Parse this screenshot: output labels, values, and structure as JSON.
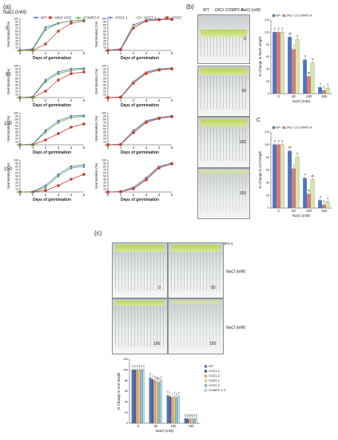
{
  "panel_a": {
    "label": "(a)",
    "nacl_header": "NaCl (mM)",
    "legend": [
      {
        "name": "WT",
        "color": "#3d6bc4",
        "marker": "diamond"
      },
      {
        "name": "DKO VOZ",
        "color": "#c0392b",
        "marker": "square"
      },
      {
        "name": "COMP2-4",
        "color": "#4f9a3a",
        "marker": "triangle"
      },
      {
        "name": "VOZ1-1",
        "color": "#3d6bc4",
        "marker": "diamond"
      },
      {
        "name": "VOZ2-1",
        "color": "#8a8a8a",
        "marker": "circle"
      },
      {
        "name": "VOZ2-",
        "color": "#c0392b",
        "marker": "square"
      }
    ],
    "row_labels": [
      "0",
      "50",
      "100",
      "150"
    ],
    "ylabel": "Germination (%)",
    "xlabel": "Days of germination"
  },
  "chart_data": [
    {
      "id": "a-0-left",
      "type": "line",
      "x": [
        0,
        1,
        2,
        3,
        4,
        5
      ],
      "ylim": [
        0,
        100
      ],
      "yticks": [
        0,
        10,
        20,
        30,
        40,
        50,
        60,
        70,
        80,
        90,
        100
      ],
      "series": [
        {
          "name": "WT",
          "values": [
            0,
            5,
            72,
            85,
            92,
            95
          ]
        },
        {
          "name": "DKO VOZ",
          "values": [
            0,
            0,
            20,
            60,
            85,
            92
          ]
        },
        {
          "name": "COMP2-4",
          "values": [
            0,
            3,
            65,
            85,
            92,
            95
          ]
        }
      ]
    },
    {
      "id": "a-0-right",
      "type": "line",
      "x": [
        0,
        1,
        2,
        3,
        4,
        5
      ],
      "ylim": [
        0,
        100
      ],
      "yticks": [
        0,
        10,
        20,
        30,
        40,
        50,
        60,
        70,
        80,
        90,
        100
      ],
      "series": [
        {
          "name": "VOZ1-1",
          "values": [
            0,
            5,
            80,
            95,
            98,
            98
          ]
        },
        {
          "name": "VOZ2-1",
          "values": [
            0,
            3,
            75,
            92,
            96,
            97
          ]
        },
        {
          "name": "VOZ2-",
          "values": [
            0,
            2,
            70,
            92,
            96,
            97
          ]
        }
      ]
    },
    {
      "id": "a-50-left",
      "type": "line",
      "x": [
        0,
        1,
        2,
        3,
        4,
        5
      ],
      "ylim": [
        0,
        100
      ],
      "yticks": [
        0,
        10,
        20,
        30,
        40,
        50,
        60,
        70,
        80,
        90,
        100
      ],
      "series": [
        {
          "name": "WT",
          "values": [
            0,
            3,
            55,
            80,
            90,
            92
          ]
        },
        {
          "name": "DKO VOZ",
          "values": [
            0,
            0,
            20,
            55,
            75,
            80
          ]
        },
        {
          "name": "COMP2-4",
          "values": [
            0,
            2,
            50,
            75,
            85,
            90
          ]
        }
      ]
    },
    {
      "id": "a-50-right",
      "type": "line",
      "x": [
        0,
        1,
        2,
        3,
        4,
        5
      ],
      "ylim": [
        0,
        100
      ],
      "yticks": [
        0,
        10,
        20,
        30,
        40,
        50,
        60,
        70,
        80,
        90,
        100
      ],
      "series": [
        {
          "name": "VOZ1-1",
          "values": [
            0,
            2,
            50,
            80,
            90,
            92
          ]
        },
        {
          "name": "VOZ2-1",
          "values": [
            0,
            2,
            48,
            78,
            88,
            90
          ]
        },
        {
          "name": "VOZ2-",
          "values": [
            0,
            1,
            45,
            75,
            86,
            90
          ]
        }
      ]
    },
    {
      "id": "a-100-left",
      "type": "line",
      "x": [
        0,
        1,
        2,
        3,
        4,
        5
      ],
      "ylim": [
        0,
        100
      ],
      "yticks": [
        0,
        10,
        20,
        30,
        40,
        50,
        60,
        70,
        80,
        90,
        100
      ],
      "series": [
        {
          "name": "WT",
          "values": [
            0,
            2,
            45,
            75,
            90,
            92
          ]
        },
        {
          "name": "DKO VOZ",
          "values": [
            0,
            0,
            15,
            35,
            55,
            65
          ]
        },
        {
          "name": "COMP2-4",
          "values": [
            0,
            1,
            40,
            70,
            85,
            90
          ]
        }
      ]
    },
    {
      "id": "a-100-right",
      "type": "line",
      "x": [
        0,
        1,
        2,
        3,
        4,
        5
      ],
      "ylim": [
        0,
        100
      ],
      "yticks": [
        0,
        10,
        20,
        30,
        40,
        50,
        60,
        70,
        80,
        90,
        100
      ],
      "series": [
        {
          "name": "VOZ1-1",
          "values": [
            0,
            2,
            45,
            75,
            85,
            90
          ]
        },
        {
          "name": "VOZ2-1",
          "values": [
            0,
            1,
            40,
            72,
            84,
            88
          ]
        },
        {
          "name": "VOZ2-",
          "values": [
            0,
            1,
            38,
            70,
            82,
            88
          ]
        }
      ]
    },
    {
      "id": "a-150-left",
      "type": "line",
      "x": [
        0,
        1,
        2,
        3,
        4,
        5
      ],
      "ylim": [
        0,
        100
      ],
      "yticks": [
        0,
        10,
        20,
        30,
        40,
        50,
        60,
        70,
        80,
        90,
        100
      ],
      "series": [
        {
          "name": "WT",
          "values": [
            0,
            1,
            20,
            55,
            80,
            85
          ]
        },
        {
          "name": "DKO VOZ",
          "values": [
            0,
            0,
            5,
            20,
            40,
            55
          ]
        },
        {
          "name": "COMP2-4",
          "values": [
            0,
            0,
            15,
            50,
            75,
            80
          ]
        }
      ]
    },
    {
      "id": "a-150-right",
      "type": "line",
      "x": [
        0,
        1,
        2,
        3,
        4,
        5
      ],
      "ylim": [
        0,
        100
      ],
      "yticks": [
        0,
        10,
        20,
        30,
        40,
        50,
        60,
        70,
        80,
        90,
        100
      ],
      "series": [
        {
          "name": "VOZ1-1",
          "values": [
            0,
            1,
            15,
            45,
            80,
            90
          ]
        },
        {
          "name": "VOZ2-1",
          "values": [
            0,
            1,
            12,
            40,
            78,
            88
          ]
        },
        {
          "name": "VOZ2-",
          "values": [
            0,
            1,
            10,
            38,
            75,
            88
          ]
        }
      ]
    },
    {
      "id": "b-fresh-weight",
      "type": "bar",
      "title": "",
      "categories": [
        "0",
        "50",
        "100",
        "150"
      ],
      "ylim": [
        0,
        120
      ],
      "yticks": [
        0,
        20,
        40,
        60,
        80,
        100,
        120
      ],
      "ylabel": "% Change in fresh weight",
      "xlabel": "NaCl (mM)",
      "series": [
        {
          "name": "WT",
          "values": [
            100,
            92,
            55,
            10
          ]
        },
        {
          "name": "DKO",
          "values": [
            100,
            72,
            28,
            5
          ]
        },
        {
          "name": "COMP2-4",
          "values": [
            100,
            88,
            50,
            9
          ]
        }
      ],
      "letters": [
        [
          "a",
          "a",
          "a"
        ],
        [
          "ab",
          "c",
          "b"
        ],
        [
          "a",
          "bc",
          "a"
        ],
        [
          "a",
          "b",
          "a"
        ]
      ]
    },
    {
      "id": "c-root-length-top",
      "type": "bar",
      "categories": [
        "0",
        "50",
        "100",
        "150"
      ],
      "ylim": [
        0,
        120
      ],
      "yticks": [
        0,
        20,
        40,
        60,
        80,
        100,
        120
      ],
      "ylabel": "% Change in root length",
      "xlabel": "NaCl (mM)",
      "series": [
        {
          "name": "WT",
          "values": [
            100,
            90,
            47,
            12
          ]
        },
        {
          "name": "DKO",
          "values": [
            100,
            62,
            22,
            5
          ]
        },
        {
          "name": "COMP2-4",
          "values": [
            100,
            80,
            45,
            10
          ]
        }
      ],
      "letters": [
        [
          "a",
          "a",
          "a"
        ],
        [
          "ab",
          "c",
          "b"
        ],
        [
          "a",
          "bc",
          "ab"
        ],
        [
          "a",
          "b",
          "a"
        ]
      ]
    },
    {
      "id": "c-root-length-bottom",
      "type": "bar",
      "categories": [
        "0",
        "50",
        "100",
        "150"
      ],
      "ylim": [
        0,
        120
      ],
      "yticks": [
        0,
        20,
        40,
        60,
        80,
        100,
        120
      ],
      "ylabel": "% Change in root length",
      "xlabel": "NaCl (mM)",
      "series": [
        {
          "name": "WT",
          "values": [
            100,
            85,
            52,
            9
          ]
        },
        {
          "name": "VOZ1-1",
          "values": [
            100,
            82,
            50,
            8
          ]
        },
        {
          "name": "VOZ1-2",
          "values": [
            100,
            80,
            48,
            8
          ]
        },
        {
          "name": "VOZ2-1",
          "values": [
            100,
            78,
            50,
            9
          ]
        },
        {
          "name": "VOZ2-2",
          "values": [
            100,
            76,
            48,
            8
          ]
        },
        {
          "name": "COMPL.2-4",
          "values": [
            100,
            80,
            50,
            9
          ]
        }
      ],
      "letters": [
        [
          "a",
          "a",
          "a",
          "a",
          "a",
          "a"
        ],
        [
          "b",
          "c",
          "d",
          "cd",
          "bc",
          "c"
        ],
        [
          "e",
          "f",
          "f",
          "f",
          "e",
          "e"
        ],
        [
          "g",
          "g",
          "g",
          "g",
          "g",
          "g"
        ]
      ]
    }
  ],
  "panel_b": {
    "label": "(b)",
    "col_labels": [
      "WT",
      "DKO",
      "COMP2-4"
    ],
    "nacl_header": "NaCl (mM)",
    "row_labels": [
      "0",
      "50",
      "100",
      "150"
    ]
  },
  "panel_c": {
    "label": "(c)",
    "col_labels": [
      "WT",
      "voz1-1",
      "voz1-2",
      "voz2-1",
      "voz2-2",
      "COMP2-4"
    ],
    "plate_labels": [
      "0",
      "50",
      "100",
      "150"
    ],
    "nacl_unit": "NaCl (mM)",
    "label_letter": "C"
  },
  "colors": {
    "wt": "#4a74c8",
    "dko": "#e07b7b",
    "comp": "#d6e7a3",
    "voz1_1": "#3c5fa8",
    "voz1_2": "#f6a27a",
    "voz2_1": "#f3d36b",
    "voz2_2": "#7dc1e8",
    "compl": "#bfe3f2"
  }
}
